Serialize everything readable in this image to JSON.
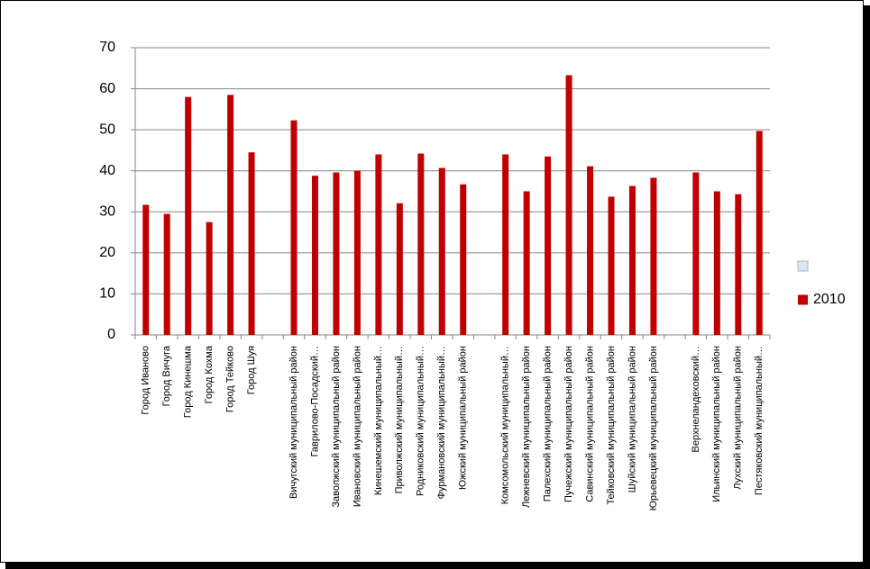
{
  "chart_data": {
    "type": "bar",
    "categories": [
      "Город Иваново",
      "Город Вичуга",
      "Город Кинешма",
      "Город Кохма",
      "Город Тейково",
      "Город Шуя",
      null,
      "Вичугский муниципальный район",
      "Гаврилово-Посадский…",
      "Заволжский муниципальный район",
      "Ивановский муниципальный район",
      "Кинешемский муниципальный…",
      "Приволжский муниципальный…",
      "Родниковский муниципальный…",
      "Фурмановский муниципальный…",
      "Южский муниципальный район",
      null,
      "Комсомольский муниципальный…",
      "Лежневский муниципальный район",
      "Палехский муниципальный район",
      "Пучежский муниципальный район",
      "Савинский муниципальный район",
      "Тейковский муниципальный район",
      "Шуйский муниципальный район",
      "Юрьевецкий муниципальный район",
      null,
      "Верхнеландеховский…",
      "Ильинский муниципальный район",
      "Лухский муниципальный район",
      "Пестяковский муниципальный…"
    ],
    "series": [
      {
        "name": "2010",
        "color": "#c00000",
        "values": [
          31.7,
          29.5,
          58,
          27.5,
          58.5,
          44.5,
          null,
          52.3,
          38.8,
          39.6,
          40,
          44,
          32.1,
          44.2,
          40.7,
          36.7,
          null,
          44,
          35,
          43.5,
          63.3,
          41.1,
          33.7,
          36.3,
          38.3,
          null,
          39.6,
          35,
          34.3,
          49.7
        ]
      }
    ],
    "ylim": [
      0,
      70
    ],
    "yticks": [
      0,
      10,
      20,
      30,
      40,
      50,
      60,
      70
    ],
    "grid": true,
    "legend": "right"
  }
}
